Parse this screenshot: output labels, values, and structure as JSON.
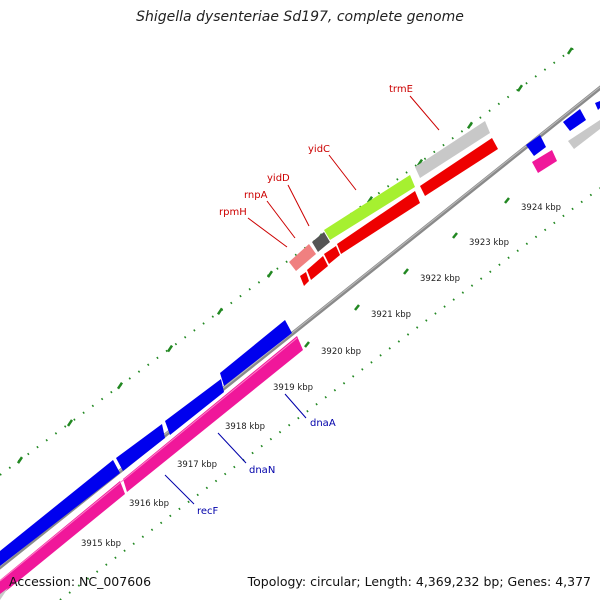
{
  "title": "Shigella dysenteriae Sd197, complete genome",
  "footer": {
    "accession": "Accession: NC_007606",
    "summary": "Topology: circular; Length: 4,369,232 bp; Genes: 4,377"
  },
  "colors": {
    "backbone": "#808080",
    "forward_cds": "#ee0000",
    "forward_highlight": "#a6f030",
    "forward_grey": "#c8c8c8",
    "forward_pink": "#f08080",
    "reverse_cds": "#0000ee",
    "reverse_pink": "#f0179a",
    "forward_label": "#cc0000",
    "reverse_label": "#0000aa",
    "tick": "#228822"
  },
  "ticks": [
    {
      "label": "3915 kbp"
    },
    {
      "label": "3916 kbp"
    },
    {
      "label": "3917 kbp"
    },
    {
      "label": "3918 kbp"
    },
    {
      "label": "3919 kbp"
    },
    {
      "label": "3920 kbp"
    },
    {
      "label": "3921 kbp"
    },
    {
      "label": "3922 kbp"
    },
    {
      "label": "3923 kbp"
    },
    {
      "label": "3924 kbp"
    }
  ],
  "genes": {
    "forward": [
      {
        "name": "rpmH"
      },
      {
        "name": "rnpA"
      },
      {
        "name": "yidD"
      },
      {
        "name": "yidC"
      },
      {
        "name": "trmE"
      }
    ],
    "reverse": [
      {
        "name": "dnaA"
      },
      {
        "name": "dnaN"
      },
      {
        "name": "recF"
      }
    ]
  }
}
